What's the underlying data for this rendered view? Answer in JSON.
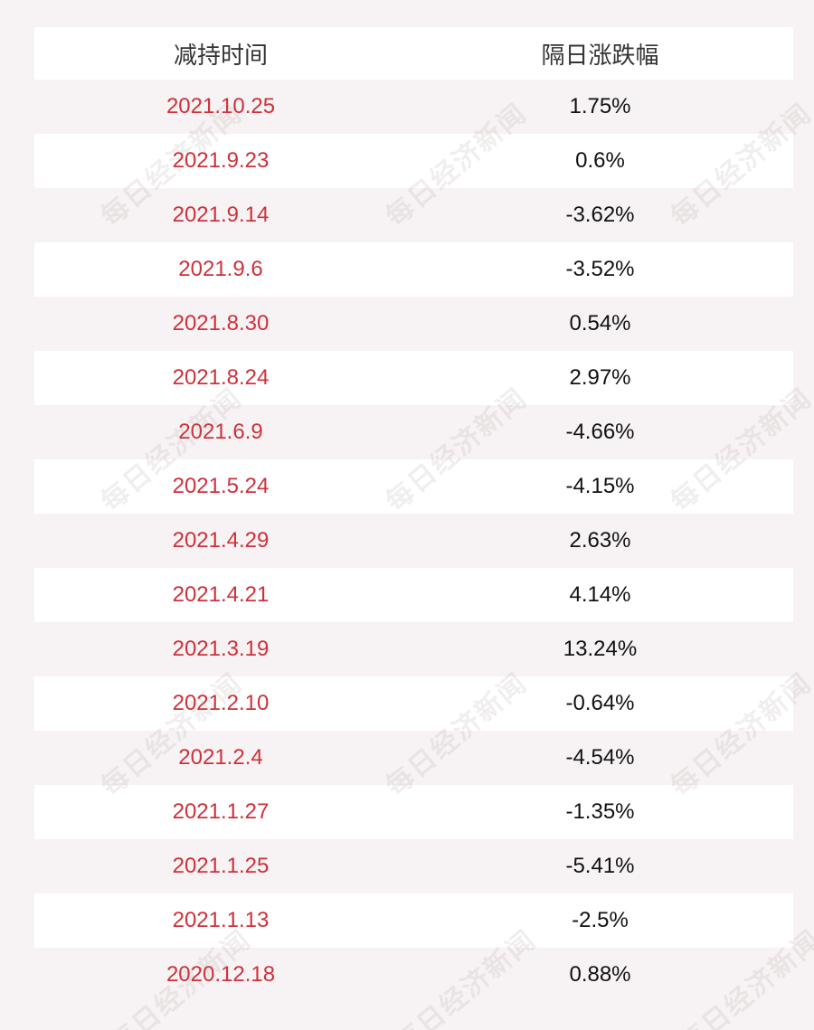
{
  "table": {
    "headers": {
      "date": "减持时间",
      "change": "隔日涨跌幅"
    },
    "rows": [
      {
        "date": "2021.10.25",
        "change": "1.75%"
      },
      {
        "date": "2021.9.23",
        "change": "0.6%"
      },
      {
        "date": "2021.9.14",
        "change": "-3.62%"
      },
      {
        "date": "2021.9.6",
        "change": "-3.52%"
      },
      {
        "date": "2021.8.30",
        "change": "0.54%"
      },
      {
        "date": "2021.8.24",
        "change": "2.97%"
      },
      {
        "date": "2021.6.9",
        "change": "-4.66%"
      },
      {
        "date": "2021.5.24",
        "change": "-4.15%"
      },
      {
        "date": "2021.4.29",
        "change": "2.63%"
      },
      {
        "date": "2021.4.21",
        "change": "4.14%"
      },
      {
        "date": "2021.3.19",
        "change": "13.24%"
      },
      {
        "date": "2021.2.10",
        "change": "-0.64%"
      },
      {
        "date": "2021.2.4",
        "change": "-4.54%"
      },
      {
        "date": "2021.1.27",
        "change": "-1.35%"
      },
      {
        "date": "2021.1.25",
        "change": "-5.41%"
      },
      {
        "date": "2021.1.13",
        "change": "-2.5%"
      },
      {
        "date": "2020.12.18",
        "change": "0.88%"
      }
    ]
  },
  "watermark": {
    "text": "每日经济新闻"
  },
  "colors": {
    "date_text": "#d0303a",
    "value_text": "#111111",
    "row_white": "#ffffff",
    "row_tinted": "#f7f3f4"
  }
}
